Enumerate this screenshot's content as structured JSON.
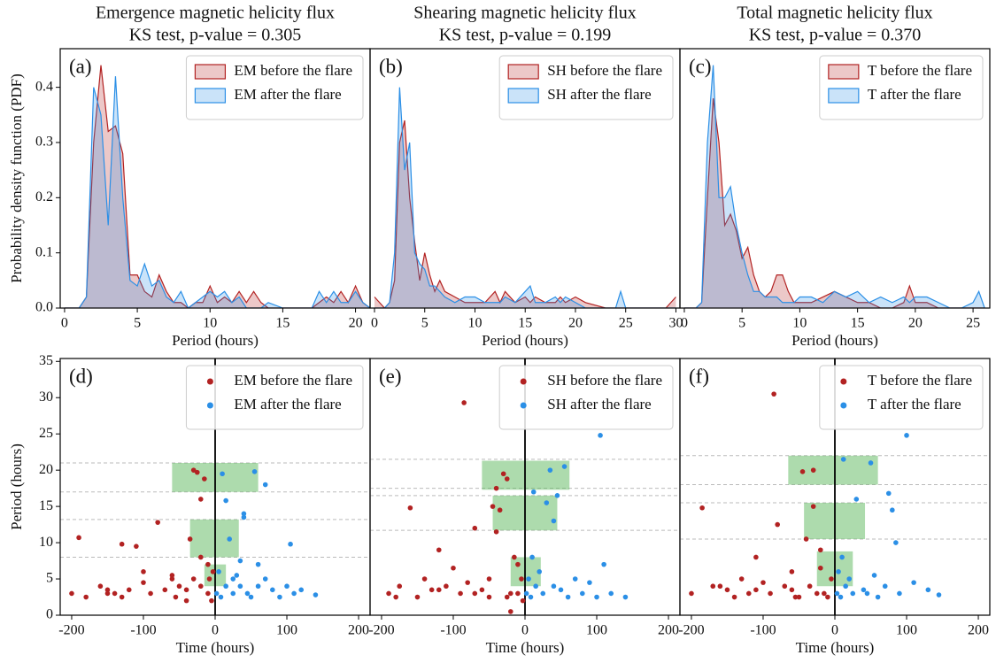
{
  "chart_data": [
    {
      "type": "area",
      "title": "Emergence magnetic helicity flux",
      "subtitle": "KS test, p-value = 0.305",
      "panel_label": "(a)",
      "xlabel": "Period (hours)",
      "ylabel": "Probability density function (PDF)",
      "legend_loc": "upper right",
      "xlim": [
        -0.3,
        21
      ],
      "ylim": [
        0,
        0.47
      ],
      "xticks": [
        0,
        5,
        10,
        15,
        20
      ],
      "yticks": [
        {
          "value": 0,
          "label": "0.0"
        },
        {
          "value": 0.1,
          "label": "0.1"
        },
        {
          "value": 0.2,
          "label": "0.2"
        },
        {
          "value": 0.3,
          "label": "0.3"
        },
        {
          "value": 0.4,
          "label": "0.4"
        }
      ],
      "x": [
        0,
        1,
        1.5,
        2,
        2.5,
        3,
        3.5,
        4,
        4.5,
        5,
        5.5,
        6,
        6.5,
        7,
        7.5,
        8,
        8.5,
        9,
        9.5,
        10,
        10.5,
        11,
        11.5,
        12,
        12.5,
        13,
        13.5,
        14,
        15,
        16,
        17,
        17.5,
        18,
        18.5,
        19,
        19.5,
        20,
        20.5,
        21
      ],
      "series": [
        {
          "name": "EM before the flare",
          "color": "#b22222",
          "values": [
            0,
            0,
            0.02,
            0.3,
            0.44,
            0.32,
            0.33,
            0.28,
            0.06,
            0.06,
            0.03,
            0.02,
            0.06,
            0.03,
            0.01,
            0.01,
            0,
            0.01,
            0.01,
            0.04,
            0.01,
            0.02,
            0.01,
            0.03,
            0.01,
            0.03,
            0.01,
            0,
            0,
            0,
            0,
            0.01,
            0.02,
            0.01,
            0.03,
            0.01,
            0.04,
            0.01,
            0
          ]
        },
        {
          "name": "EM after the flare",
          "color": "#2b8fe6",
          "values": [
            0,
            0,
            0.02,
            0.4,
            0.35,
            0.15,
            0.42,
            0.2,
            0.05,
            0.04,
            0.08,
            0.04,
            0.05,
            0.02,
            0.01,
            0.03,
            0,
            0.01,
            0.02,
            0.03,
            0.02,
            0.03,
            0.01,
            0.02,
            0,
            0,
            0,
            0.01,
            0,
            0,
            0,
            0.03,
            0.01,
            0.03,
            0.01,
            0.01,
            0.03,
            0.01,
            0
          ]
        }
      ]
    },
    {
      "type": "area",
      "title": "Shearing magnetic helicity flux",
      "subtitle": "KS test, p-value = 0.199",
      "panel_label": "(b)",
      "xlabel": "Period (hours)",
      "legend_loc": "upper right",
      "xlim": [
        -0.44,
        30.4
      ],
      "ylim": [
        0,
        0.47
      ],
      "xticks": [
        0,
        5,
        10,
        15,
        20,
        25,
        30
      ],
      "x": [
        0,
        1,
        1.5,
        2,
        2.5,
        3,
        3.5,
        4,
        4.5,
        5,
        5.5,
        6,
        6.5,
        7,
        8,
        9,
        10,
        11,
        12,
        12.5,
        13,
        14,
        15,
        15.5,
        16,
        17,
        18,
        18.5,
        19,
        20,
        21,
        23,
        24,
        24.5,
        25,
        27,
        29,
        29.5,
        30
      ],
      "series": [
        {
          "name": "SH before the flare",
          "color": "#b22222",
          "values": [
            0.02,
            0,
            0.01,
            0.05,
            0.3,
            0.34,
            0.2,
            0.12,
            0.05,
            0.1,
            0.06,
            0.03,
            0.05,
            0.03,
            0.02,
            0.01,
            0.01,
            0.01,
            0.03,
            0.01,
            0.03,
            0.01,
            0.02,
            0.01,
            0.02,
            0.01,
            0.01,
            0.02,
            0.01,
            0.02,
            0.01,
            0,
            0,
            0,
            0,
            0,
            0,
            0.01,
            0.02
          ]
        },
        {
          "name": "SH after the flare",
          "color": "#2b8fe6",
          "values": [
            0,
            0,
            0.01,
            0.1,
            0.4,
            0.25,
            0.3,
            0.1,
            0.08,
            0.07,
            0.04,
            0.04,
            0.03,
            0.02,
            0.01,
            0.02,
            0.02,
            0.01,
            0.01,
            0.01,
            0.02,
            0.01,
            0.03,
            0.04,
            0.01,
            0.01,
            0.02,
            0.01,
            0.02,
            0.01,
            0,
            0,
            0,
            0.03,
            0,
            0,
            0,
            0,
            0
          ]
        }
      ]
    },
    {
      "type": "area",
      "title": "Total magnetic helicity flux",
      "subtitle": "KS test, p-value = 0.370",
      "panel_label": "(c)",
      "xlabel": "Period (hours)",
      "legend_loc": "upper right",
      "xlim": [
        -0.38,
        26.45
      ],
      "ylim": [
        0,
        0.47
      ],
      "xticks": [
        0,
        5,
        10,
        15,
        20,
        25
      ],
      "x": [
        0,
        1,
        1.5,
        2,
        2.5,
        3,
        3.5,
        4,
        4.5,
        5,
        5.5,
        6,
        6.5,
        7,
        7.5,
        8,
        8.5,
        9,
        9.5,
        10,
        11,
        12,
        13,
        14,
        15,
        16,
        17,
        18,
        19,
        19.5,
        20,
        21,
        22,
        23,
        24,
        25,
        25.5,
        26
      ],
      "series": [
        {
          "name": "T before the flare",
          "color": "#b22222",
          "values": [
            0,
            0,
            0.01,
            0.2,
            0.38,
            0.3,
            0.15,
            0.17,
            0.14,
            0.09,
            0.11,
            0.06,
            0.03,
            0.02,
            0.03,
            0.06,
            0.06,
            0.03,
            0.01,
            0.01,
            0.01,
            0.02,
            0.03,
            0.02,
            0.01,
            0.01,
            0,
            0,
            0.01,
            0.04,
            0.01,
            0.01,
            0,
            0,
            0,
            0,
            0,
            0
          ]
        },
        {
          "name": "T after the flare",
          "color": "#2b8fe6",
          "values": [
            0,
            0,
            0.01,
            0.3,
            0.44,
            0.2,
            0.2,
            0.22,
            0.15,
            0.1,
            0.06,
            0.03,
            0.03,
            0.02,
            0.02,
            0.02,
            0.01,
            0.01,
            0.01,
            0.02,
            0.02,
            0.01,
            0.03,
            0.02,
            0.03,
            0.01,
            0.02,
            0.01,
            0.02,
            0.01,
            0.02,
            0.02,
            0.01,
            0,
            0,
            0.01,
            0.03,
            0
          ]
        }
      ]
    },
    {
      "type": "scatter",
      "panel_label": "(d)",
      "xlabel": "Time (hours)",
      "ylabel": "Period (hours)",
      "legend_loc": "upper right",
      "xlim": [
        -216,
        216
      ],
      "ylim": [
        0,
        35.4
      ],
      "xticks": [
        -200,
        -100,
        0,
        100,
        200
      ],
      "yticks": [
        0,
        5,
        10,
        15,
        20,
        25,
        30,
        35
      ],
      "vline": 0,
      "hlines": [
        21,
        17,
        13.2,
        8
      ],
      "boxes": [
        {
          "x": [
            -60,
            60
          ],
          "y": [
            17,
            21
          ]
        },
        {
          "x": [
            -35,
            33
          ],
          "y": [
            8,
            13.2
          ]
        },
        {
          "x": [
            -15,
            15
          ],
          "y": [
            4,
            7
          ]
        }
      ],
      "series": [
        {
          "name": "EM before the flare",
          "color": "#b22222",
          "x": [
            -200,
            -180,
            -160,
            -140,
            -130,
            -120,
            -110,
            -100,
            -90,
            -80,
            -70,
            -60,
            -55,
            -50,
            -40,
            -35,
            -30,
            -25,
            -20,
            -15,
            -10,
            -8,
            -5,
            -3,
            -150,
            -130,
            -100,
            -60,
            -20,
            -10,
            -190,
            -150,
            -40,
            -30,
            -20
          ],
          "values": [
            3,
            2.5,
            4,
            3,
            9.8,
            3.5,
            9.5,
            4.5,
            3,
            12.8,
            3.5,
            5,
            2.5,
            4,
            3.5,
            10.5,
            20,
            19.7,
            8,
            18.8,
            3,
            5,
            2,
            6,
            3.5,
            2.5,
            6,
            5.5,
            16,
            7,
            10.7,
            3,
            2,
            5,
            4
          ]
        },
        {
          "name": "EM after the flare",
          "color": "#2b8fe6",
          "x": [
            2,
            5,
            8,
            10,
            15,
            20,
            25,
            30,
            35,
            40,
            45,
            50,
            55,
            60,
            70,
            80,
            90,
            100,
            110,
            120,
            140,
            15,
            40,
            60,
            70,
            105,
            25,
            35
          ],
          "values": [
            3,
            6,
            2.5,
            19.5,
            4,
            10.5,
            3,
            5.5,
            4,
            13.5,
            3,
            2.5,
            19.8,
            4,
            18,
            3.5,
            2.5,
            4,
            3,
            3.5,
            2.8,
            15.8,
            14,
            7,
            5,
            9.8,
            5,
            7.5
          ]
        }
      ]
    },
    {
      "type": "scatter",
      "panel_label": "(e)",
      "xlabel": "Time (hours)",
      "legend_loc": "upper right",
      "xlim": [
        -216,
        216
      ],
      "ylim": [
        0,
        35.4
      ],
      "xticks": [
        -200,
        -100,
        0,
        100,
        200
      ],
      "vline": 0,
      "hlines": [
        21.5,
        17.5,
        16.5,
        11.7
      ],
      "boxes": [
        {
          "x": [
            -60,
            62
          ],
          "y": [
            17.3,
            21.3
          ]
        },
        {
          "x": [
            -45,
            45
          ],
          "y": [
            11.7,
            16.5
          ]
        },
        {
          "x": [
            -20,
            22
          ],
          "y": [
            4,
            8
          ]
        }
      ],
      "series": [
        {
          "name": "SH before the flare",
          "color": "#b22222",
          "x": [
            -190,
            -175,
            -160,
            -150,
            -140,
            -130,
            -120,
            -110,
            -100,
            -90,
            -85,
            -80,
            -70,
            -60,
            -50,
            -45,
            -40,
            -30,
            -25,
            -20,
            -15,
            -10,
            -5,
            -3,
            -180,
            -120,
            -70,
            -40,
            -10,
            -35,
            -20,
            -50,
            -25
          ],
          "values": [
            3,
            4,
            14.8,
            2.5,
            5,
            3.5,
            9,
            4,
            6.5,
            3,
            29.3,
            4.5,
            12,
            3.5,
            2.5,
            15,
            17.5,
            19.5,
            18.8,
            3,
            8,
            3,
            5,
            2,
            2.5,
            3.5,
            3,
            11.5,
            7,
            14.5,
            0.5,
            5,
            2.5
          ]
        },
        {
          "name": "SH after the flare",
          "color": "#2b8fe6",
          "x": [
            2,
            5,
            8,
            12,
            15,
            20,
            25,
            30,
            35,
            40,
            50,
            60,
            70,
            80,
            90,
            100,
            105,
            120,
            140,
            10,
            40,
            45,
            55,
            110
          ],
          "values": [
            3,
            5,
            2.5,
            17,
            4,
            6,
            3,
            15.5,
            20,
            4,
            3.5,
            2.5,
            5,
            3,
            4.5,
            2.5,
            24.8,
            3,
            2.5,
            8,
            13,
            16.5,
            20.5,
            7
          ]
        }
      ]
    },
    {
      "type": "scatter",
      "panel_label": "(f)",
      "xlabel": "Time (hours)",
      "legend_loc": "upper right",
      "xlim": [
        -216,
        216
      ],
      "ylim": [
        0,
        35.4
      ],
      "xticks": [
        -200,
        -100,
        0,
        100,
        200
      ],
      "vline": 0,
      "hlines": [
        22,
        18,
        15.5,
        10.5
      ],
      "boxes": [
        {
          "x": [
            -65,
            60
          ],
          "y": [
            18,
            22
          ]
        },
        {
          "x": [
            -43,
            42
          ],
          "y": [
            10.5,
            15.5
          ]
        },
        {
          "x": [
            -25,
            25
          ],
          "y": [
            4,
            8.8
          ]
        }
      ],
      "series": [
        {
          "name": "T before the flare",
          "color": "#b22222",
          "x": [
            -200,
            -185,
            -170,
            -150,
            -140,
            -130,
            -120,
            -110,
            -100,
            -90,
            -85,
            -80,
            -70,
            -60,
            -50,
            -45,
            -40,
            -30,
            -20,
            -15,
            -10,
            -5,
            -160,
            -110,
            -60,
            -30,
            -20,
            -55,
            -35,
            -25
          ],
          "values": [
            3,
            14.8,
            4,
            3.5,
            2.5,
            5,
            3,
            8,
            4.5,
            3,
            30.5,
            12.5,
            4,
            3.5,
            2.5,
            19.8,
            10.5,
            20,
            6.5,
            3,
            2.5,
            5,
            4,
            3.5,
            6,
            15,
            9,
            2.5,
            4,
            3
          ]
        },
        {
          "name": "T after the flare",
          "color": "#2b8fe6",
          "x": [
            3,
            5,
            8,
            12,
            15,
            20,
            25,
            30,
            40,
            50,
            55,
            60,
            70,
            75,
            80,
            85,
            90,
            100,
            110,
            130,
            145,
            10,
            45
          ],
          "values": [
            3,
            6,
            2.5,
            21.5,
            4,
            5,
            3,
            16,
            3.5,
            21,
            5.5,
            2.5,
            4,
            16.8,
            14.5,
            10,
            3,
            24.8,
            4.5,
            3.5,
            2.8,
            8,
            3
          ]
        }
      ]
    }
  ]
}
